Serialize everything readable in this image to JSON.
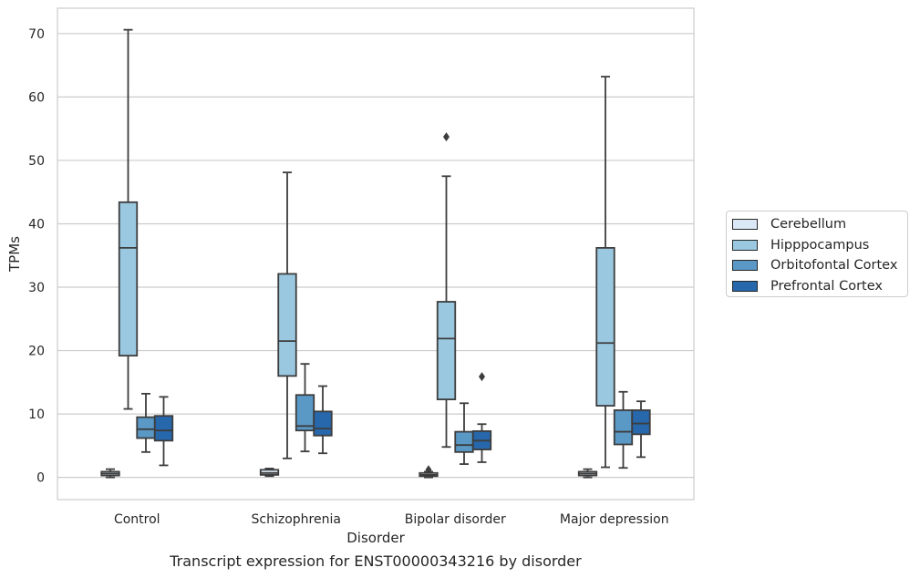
{
  "caption": "Transcript expression for ENST00000343216 by disorder",
  "chart_data": {
    "type": "boxplot",
    "xlabel": "Disorder",
    "ylabel": "TPMs",
    "categories": [
      "Control",
      "Schizophrenia",
      "Bipolar disorder",
      "Major depression"
    ],
    "ylim": [
      -3.5,
      74
    ],
    "yticks": [
      0,
      10,
      20,
      30,
      40,
      50,
      60,
      70
    ],
    "grid": true,
    "legend_position": "right",
    "series": [
      {
        "name": "Cerebellum",
        "color": "#dbe9f6",
        "boxes": [
          {
            "whislo": 0.0,
            "q1": 0.3,
            "med": 0.6,
            "q3": 0.9,
            "whishi": 1.3,
            "fliers": []
          },
          {
            "whislo": 0.2,
            "q1": 0.4,
            "med": 0.7,
            "q3": 1.2,
            "whishi": 1.4,
            "fliers": []
          },
          {
            "whislo": 0.0,
            "q1": 0.2,
            "med": 0.4,
            "q3": 0.7,
            "whishi": 0.9,
            "fliers": [
              1.2
            ]
          },
          {
            "whislo": 0.0,
            "q1": 0.3,
            "med": 0.6,
            "q3": 0.9,
            "whishi": 1.3,
            "fliers": []
          }
        ]
      },
      {
        "name": "Hipppocampus",
        "color": "#9ac8e0",
        "boxes": [
          {
            "whislo": 10.8,
            "q1": 19.2,
            "med": 36.2,
            "q3": 43.4,
            "whishi": 70.6,
            "fliers": []
          },
          {
            "whislo": 3.0,
            "q1": 16.0,
            "med": 21.5,
            "q3": 32.1,
            "whishi": 48.1,
            "fliers": []
          },
          {
            "whislo": 4.8,
            "q1": 12.3,
            "med": 21.9,
            "q3": 27.7,
            "whishi": 47.5,
            "fliers": [
              53.7
            ]
          },
          {
            "whislo": 1.6,
            "q1": 11.3,
            "med": 21.2,
            "q3": 36.2,
            "whishi": 63.2,
            "fliers": []
          }
        ]
      },
      {
        "name": "Orbitofontal Cortex",
        "color": "#5a98c6",
        "boxes": [
          {
            "whislo": 4.0,
            "q1": 6.2,
            "med": 7.6,
            "q3": 9.5,
            "whishi": 13.2,
            "fliers": []
          },
          {
            "whislo": 4.1,
            "q1": 7.4,
            "med": 8.1,
            "q3": 13.0,
            "whishi": 17.9,
            "fliers": []
          },
          {
            "whislo": 2.1,
            "q1": 4.0,
            "med": 5.1,
            "q3": 7.2,
            "whishi": 11.7,
            "fliers": []
          },
          {
            "whislo": 1.5,
            "q1": 5.2,
            "med": 7.2,
            "q3": 10.6,
            "whishi": 13.5,
            "fliers": []
          }
        ]
      },
      {
        "name": "Prefrontal Cortex",
        "color": "#2767ac",
        "boxes": [
          {
            "whislo": 1.9,
            "q1": 5.8,
            "med": 7.4,
            "q3": 9.7,
            "whishi": 12.7,
            "fliers": []
          },
          {
            "whislo": 3.8,
            "q1": 6.6,
            "med": 7.7,
            "q3": 10.4,
            "whishi": 14.4,
            "fliers": []
          },
          {
            "whislo": 2.4,
            "q1": 4.4,
            "med": 5.8,
            "q3": 7.3,
            "whishi": 8.4,
            "fliers": [
              15.9
            ]
          },
          {
            "whislo": 3.2,
            "q1": 6.8,
            "med": 8.5,
            "q3": 10.6,
            "whishi": 12.0,
            "fliers": []
          }
        ]
      }
    ]
  }
}
